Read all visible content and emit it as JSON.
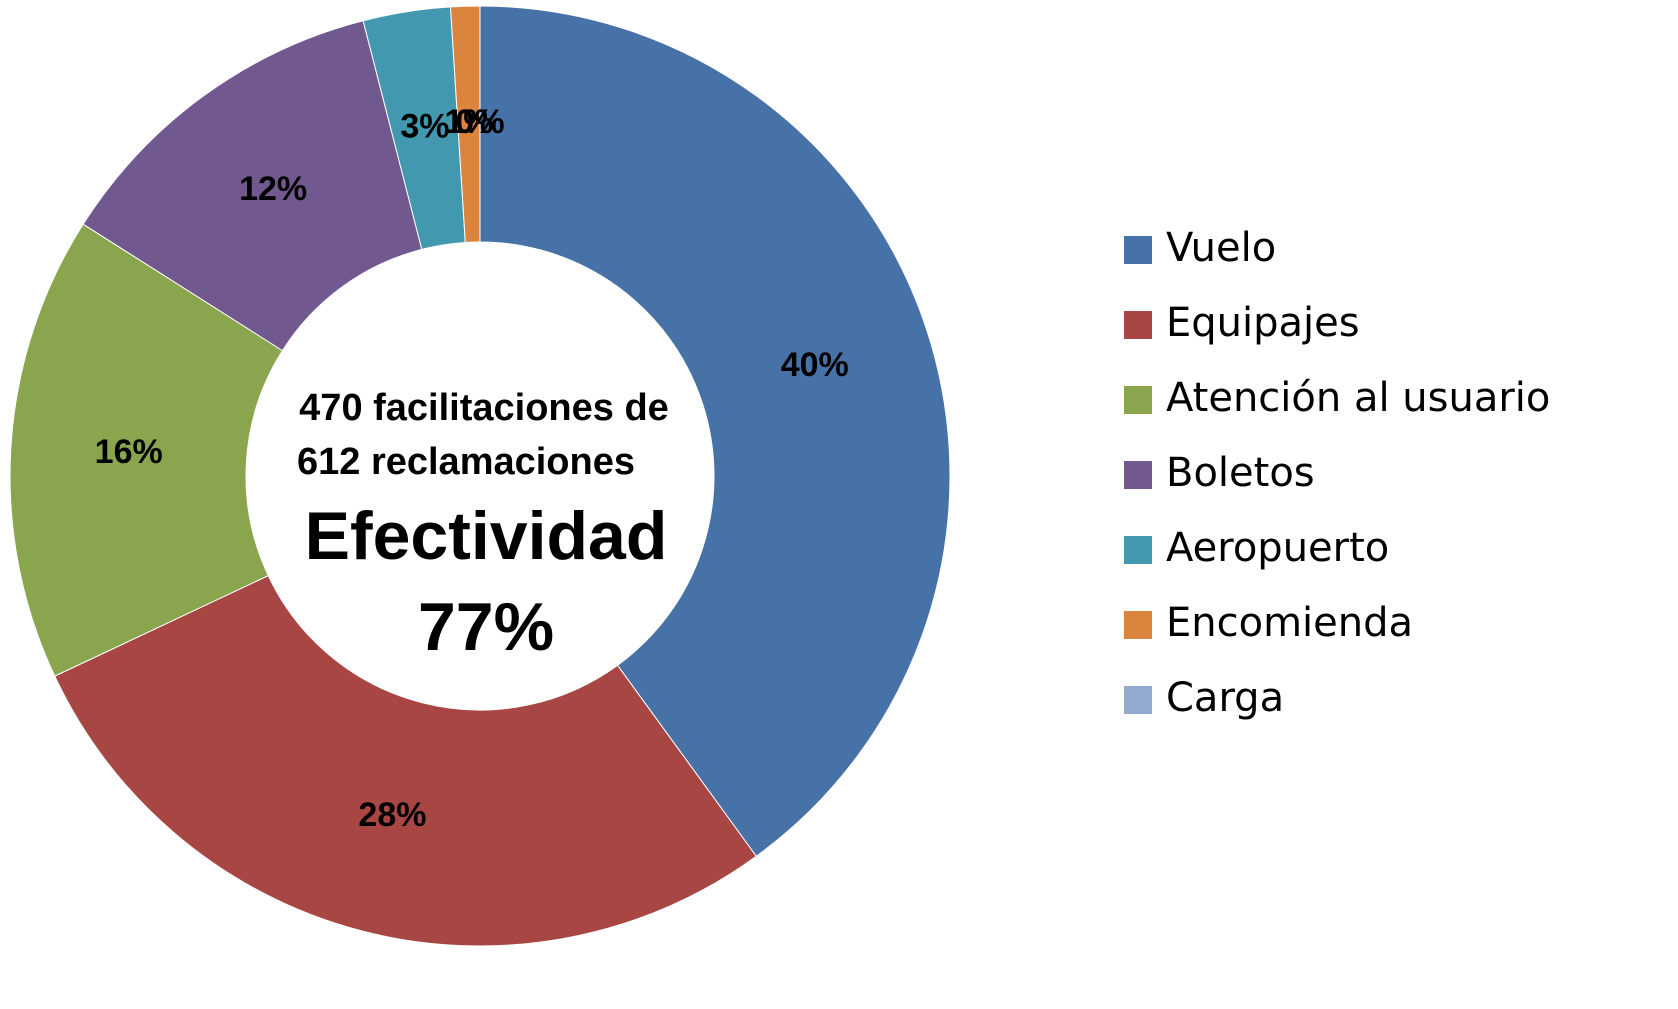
{
  "chart_data": {
    "type": "donut",
    "categories": [
      "Vuelo",
      "Equipajes",
      "Atención al usuario",
      "Boletos",
      "Aeropuerto",
      "Encomienda",
      "Carga"
    ],
    "values": [
      40,
      28,
      16,
      12,
      3,
      1,
      0
    ],
    "value_labels": [
      "40%",
      "28%",
      "16%",
      "12%",
      "3%",
      "1%",
      "0%"
    ],
    "colors": [
      "#4672a8",
      "#a84644",
      "#89a54e",
      "#71588f",
      "#4198af",
      "#db843d",
      "#93a9cf"
    ],
    "annotations": [
      "470 facilitaciones de",
      "612 reclamaciones",
      "Efectividad",
      "77%"
    ],
    "legend": "right"
  }
}
